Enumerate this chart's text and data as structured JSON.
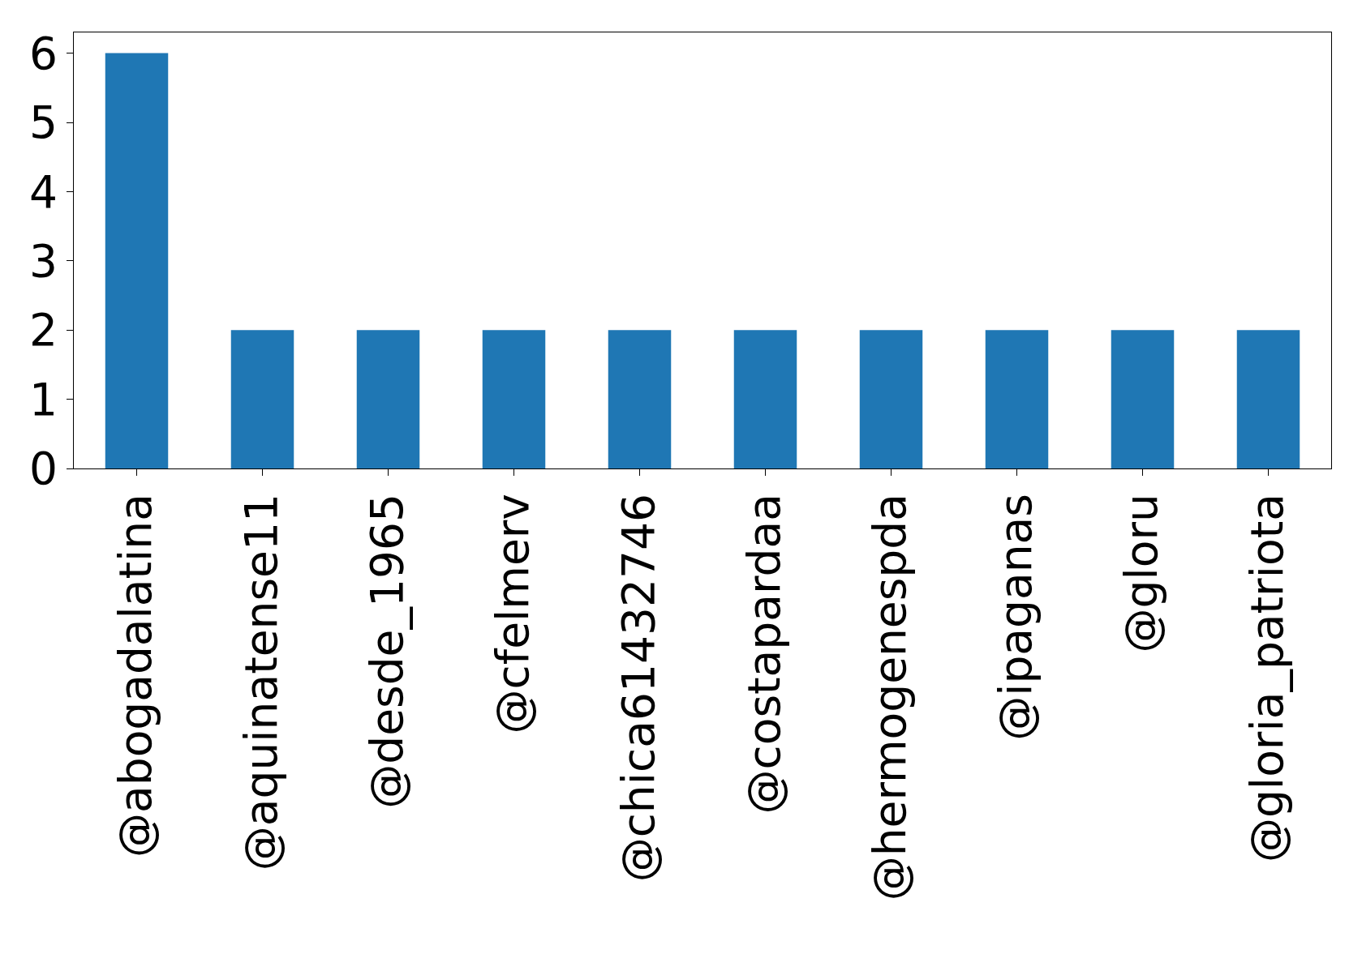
{
  "chart_data": {
    "type": "bar",
    "categories": [
      "@abogadalatina",
      "@aquinatense11",
      "@desde_1965",
      "@cfelmerv",
      "@chica61432746",
      "@costapardaa",
      "@hermogenespda",
      "@ipaganas",
      "@gloru",
      "@gloria_patriota"
    ],
    "values": [
      6,
      2,
      2,
      2,
      2,
      2,
      2,
      2,
      2,
      2
    ],
    "color": "#1f77b4",
    "ylim": [
      0,
      6.3
    ],
    "yticks": [
      0,
      1,
      2,
      3,
      4,
      5,
      6
    ],
    "grid": false
  }
}
